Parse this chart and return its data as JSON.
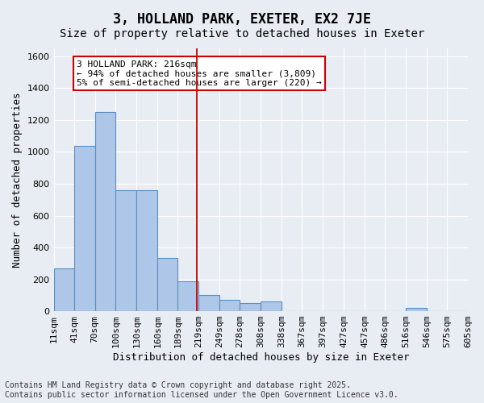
{
  "title1": "3, HOLLAND PARK, EXETER, EX2 7JE",
  "title2": "Size of property relative to detached houses in Exeter",
  "xlabel": "Distribution of detached houses by size in Exeter",
  "ylabel": "Number of detached properties",
  "bar_color": "#aec6e8",
  "bar_edge_color": "#5a8fc0",
  "background_color": "#e8edf4",
  "grid_color": "#ffffff",
  "annotation_text": "3 HOLLAND PARK: 216sqm\n← 94% of detached houses are smaller (3,809)\n5% of semi-detached houses are larger (220) →",
  "annotation_box_color": "#cc0000",
  "vline_x": 216,
  "vline_color": "#cc0000",
  "bins": [
    11,
    41,
    70,
    100,
    130,
    160,
    189,
    219,
    249,
    278,
    308,
    338,
    367,
    397,
    427,
    457,
    486,
    516,
    546,
    575,
    605
  ],
  "bin_labels": [
    "11sqm",
    "41sqm",
    "70sqm",
    "100sqm",
    "130sqm",
    "160sqm",
    "189sqm",
    "219sqm",
    "249sqm",
    "278sqm",
    "308sqm",
    "338sqm",
    "367sqm",
    "397sqm",
    "427sqm",
    "457sqm",
    "486sqm",
    "516sqm",
    "546sqm",
    "575sqm",
    "605sqm"
  ],
  "counts": [
    270,
    1040,
    1250,
    760,
    760,
    335,
    190,
    100,
    70,
    50,
    60,
    0,
    0,
    0,
    0,
    0,
    0,
    20,
    0,
    0
  ],
  "ylim": [
    0,
    1650
  ],
  "yticks": [
    0,
    200,
    400,
    600,
    800,
    1000,
    1200,
    1400,
    1600
  ],
  "footnote": "Contains HM Land Registry data © Crown copyright and database right 2025.\nContains public sector information licensed under the Open Government Licence v3.0.",
  "title1_fontsize": 12,
  "title2_fontsize": 10,
  "xlabel_fontsize": 9,
  "ylabel_fontsize": 9,
  "tick_fontsize": 8,
  "annotation_fontsize": 8,
  "footnote_fontsize": 7
}
